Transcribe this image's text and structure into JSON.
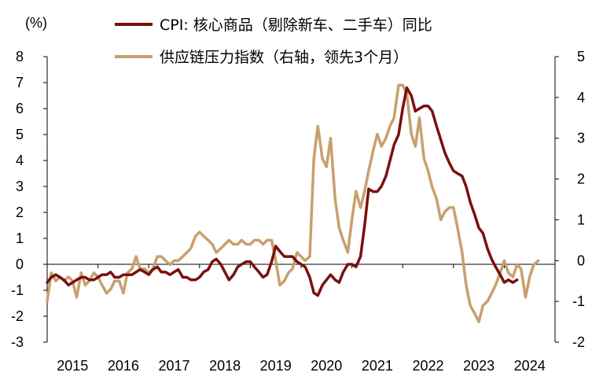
{
  "chart_data": {
    "type": "line",
    "unit_label": "(%)",
    "colors": {
      "cpi": "#7a1010",
      "supply": "#c8a06e",
      "neg_tick": "#e00000",
      "axis": "#000000"
    },
    "left_axis": {
      "min": -3,
      "max": 8,
      "ticks": [
        "8",
        "7",
        "6",
        "5",
        "4",
        "3",
        "2",
        "1",
        "0",
        "-1",
        "-2",
        "-3"
      ]
    },
    "right_axis": {
      "min": -2,
      "max": 5,
      "ticks": [
        "5",
        "4",
        "3",
        "2",
        "1",
        "0",
        "-1",
        "-2"
      ]
    },
    "x_axis": {
      "start": 2015.0,
      "end": 2025.0,
      "labels": [
        "2015",
        "2016",
        "2017",
        "2018",
        "2019",
        "2020",
        "2021",
        "2022",
        "2023",
        "2024"
      ]
    },
    "series": [
      {
        "name": "CPI: 核心商品（剔除新车、二手车）同比",
        "axis": "left",
        "color": "#7a1010",
        "points": [
          [
            2015.0,
            -0.7
          ],
          [
            2015.08,
            -0.5
          ],
          [
            2015.17,
            -0.4
          ],
          [
            2015.25,
            -0.5
          ],
          [
            2015.33,
            -0.6
          ],
          [
            2015.42,
            -0.8
          ],
          [
            2015.5,
            -0.7
          ],
          [
            2015.58,
            -0.6
          ],
          [
            2015.67,
            -0.5
          ],
          [
            2015.75,
            -0.5
          ],
          [
            2015.83,
            -0.6
          ],
          [
            2015.92,
            -0.6
          ],
          [
            2016.0,
            -0.5
          ],
          [
            2016.08,
            -0.4
          ],
          [
            2016.17,
            -0.4
          ],
          [
            2016.25,
            -0.3
          ],
          [
            2016.33,
            -0.5
          ],
          [
            2016.42,
            -0.5
          ],
          [
            2016.5,
            -0.4
          ],
          [
            2016.58,
            -0.4
          ],
          [
            2016.67,
            -0.4
          ],
          [
            2016.75,
            -0.3
          ],
          [
            2016.83,
            -0.2
          ],
          [
            2016.92,
            -0.3
          ],
          [
            2017.0,
            -0.4
          ],
          [
            2017.08,
            -0.2
          ],
          [
            2017.17,
            -0.1
          ],
          [
            2017.25,
            -0.3
          ],
          [
            2017.33,
            -0.3
          ],
          [
            2017.42,
            -0.4
          ],
          [
            2017.5,
            -0.3
          ],
          [
            2017.58,
            -0.2
          ],
          [
            2017.67,
            -0.5
          ],
          [
            2017.75,
            -0.5
          ],
          [
            2017.83,
            -0.6
          ],
          [
            2017.92,
            -0.6
          ],
          [
            2018.0,
            -0.5
          ],
          [
            2018.08,
            -0.3
          ],
          [
            2018.17,
            -0.2
          ],
          [
            2018.25,
            0.1
          ],
          [
            2018.33,
            0.2
          ],
          [
            2018.42,
            0.0
          ],
          [
            2018.5,
            -0.3
          ],
          [
            2018.58,
            -0.6
          ],
          [
            2018.67,
            -0.4
          ],
          [
            2018.75,
            -0.1
          ],
          [
            2018.83,
            0.0
          ],
          [
            2018.92,
            0.1
          ],
          [
            2019.0,
            0.1
          ],
          [
            2019.08,
            -0.1
          ],
          [
            2019.17,
            -0.3
          ],
          [
            2019.25,
            -0.5
          ],
          [
            2019.33,
            -0.4
          ],
          [
            2019.42,
            0.1
          ],
          [
            2019.5,
            0.7
          ],
          [
            2019.58,
            0.5
          ],
          [
            2019.67,
            0.3
          ],
          [
            2019.75,
            0.3
          ],
          [
            2019.83,
            0.3
          ],
          [
            2019.92,
            0.1
          ],
          [
            2020.0,
            0.0
          ],
          [
            2020.08,
            -0.1
          ],
          [
            2020.17,
            -0.5
          ],
          [
            2020.25,
            -1.1
          ],
          [
            2020.33,
            -1.2
          ],
          [
            2020.42,
            -0.8
          ],
          [
            2020.5,
            -0.6
          ],
          [
            2020.58,
            -0.4
          ],
          [
            2020.67,
            -0.6
          ],
          [
            2020.75,
            -0.7
          ],
          [
            2020.83,
            -0.3
          ],
          [
            2020.92,
            0.0
          ],
          [
            2021.0,
            0.0
          ],
          [
            2021.08,
            -0.1
          ],
          [
            2021.17,
            0.3
          ],
          [
            2021.25,
            1.5
          ],
          [
            2021.33,
            2.9
          ],
          [
            2021.42,
            2.8
          ],
          [
            2021.5,
            2.8
          ],
          [
            2021.58,
            3.0
          ],
          [
            2021.67,
            3.4
          ],
          [
            2021.75,
            4.0
          ],
          [
            2021.83,
            4.6
          ],
          [
            2021.92,
            5.0
          ],
          [
            2022.0,
            6.0
          ],
          [
            2022.08,
            6.8
          ],
          [
            2022.17,
            6.5
          ],
          [
            2022.25,
            5.9
          ],
          [
            2022.33,
            6.0
          ],
          [
            2022.42,
            6.1
          ],
          [
            2022.5,
            6.1
          ],
          [
            2022.58,
            5.9
          ],
          [
            2022.67,
            5.3
          ],
          [
            2022.75,
            4.8
          ],
          [
            2022.83,
            4.3
          ],
          [
            2022.92,
            3.9
          ],
          [
            2023.0,
            3.6
          ],
          [
            2023.08,
            3.5
          ],
          [
            2023.17,
            3.4
          ],
          [
            2023.25,
            3.0
          ],
          [
            2023.33,
            2.4
          ],
          [
            2023.42,
            1.9
          ],
          [
            2023.5,
            1.4
          ],
          [
            2023.58,
            1.2
          ],
          [
            2023.67,
            0.6
          ],
          [
            2023.75,
            0.2
          ],
          [
            2023.83,
            -0.1
          ],
          [
            2023.92,
            -0.4
          ],
          [
            2024.0,
            -0.7
          ],
          [
            2024.08,
            -0.6
          ],
          [
            2024.17,
            -0.7
          ],
          [
            2024.25,
            -0.6
          ]
        ]
      },
      {
        "name": "供应链压力指数（右轴，领先3个月）",
        "axis": "right",
        "color": "#c8a06e",
        "points": [
          [
            2015.0,
            -1.0
          ],
          [
            2015.08,
            -0.3
          ],
          [
            2015.17,
            -0.5
          ],
          [
            2015.25,
            -0.4
          ],
          [
            2015.33,
            -0.5
          ],
          [
            2015.42,
            -0.4
          ],
          [
            2015.5,
            -0.5
          ],
          [
            2015.58,
            -0.9
          ],
          [
            2015.67,
            -0.3
          ],
          [
            2015.75,
            -0.6
          ],
          [
            2015.83,
            -0.5
          ],
          [
            2015.92,
            -0.3
          ],
          [
            2016.0,
            -0.4
          ],
          [
            2016.08,
            -0.6
          ],
          [
            2016.17,
            -0.8
          ],
          [
            2016.25,
            -0.7
          ],
          [
            2016.33,
            -0.5
          ],
          [
            2016.42,
            -0.5
          ],
          [
            2016.5,
            -0.8
          ],
          [
            2016.58,
            -0.3
          ],
          [
            2016.67,
            -0.2
          ],
          [
            2016.75,
            0.1
          ],
          [
            2016.83,
            -0.2
          ],
          [
            2016.92,
            -0.2
          ],
          [
            2017.0,
            -0.3
          ],
          [
            2017.08,
            -0.2
          ],
          [
            2017.17,
            0.1
          ],
          [
            2017.25,
            0.1
          ],
          [
            2017.33,
            0.0
          ],
          [
            2017.42,
            -0.1
          ],
          [
            2017.5,
            0.0
          ],
          [
            2017.58,
            0.0
          ],
          [
            2017.67,
            0.1
          ],
          [
            2017.75,
            0.2
          ],
          [
            2017.83,
            0.3
          ],
          [
            2017.92,
            0.6
          ],
          [
            2018.0,
            0.7
          ],
          [
            2018.08,
            0.6
          ],
          [
            2018.17,
            0.5
          ],
          [
            2018.25,
            0.4
          ],
          [
            2018.33,
            0.2
          ],
          [
            2018.42,
            0.3
          ],
          [
            2018.5,
            0.4
          ],
          [
            2018.58,
            0.5
          ],
          [
            2018.67,
            0.4
          ],
          [
            2018.75,
            0.4
          ],
          [
            2018.83,
            0.5
          ],
          [
            2018.92,
            0.4
          ],
          [
            2019.0,
            0.4
          ],
          [
            2019.08,
            0.5
          ],
          [
            2019.17,
            0.5
          ],
          [
            2019.25,
            0.4
          ],
          [
            2019.33,
            0.5
          ],
          [
            2019.42,
            0.5
          ],
          [
            2019.5,
            0.0
          ],
          [
            2019.58,
            -0.6
          ],
          [
            2019.67,
            -0.5
          ],
          [
            2019.75,
            -0.3
          ],
          [
            2019.83,
            -0.2
          ],
          [
            2019.92,
            0.2
          ],
          [
            2020.0,
            0.1
          ],
          [
            2020.08,
            0.0
          ],
          [
            2020.17,
            0.1
          ],
          [
            2020.25,
            2.5
          ],
          [
            2020.33,
            3.3
          ],
          [
            2020.42,
            2.5
          ],
          [
            2020.5,
            2.3
          ],
          [
            2020.58,
            3.0
          ],
          [
            2020.67,
            1.5
          ],
          [
            2020.75,
            0.8
          ],
          [
            2020.83,
            0.5
          ],
          [
            2020.92,
            0.2
          ],
          [
            2021.0,
            1.0
          ],
          [
            2021.08,
            1.7
          ],
          [
            2021.17,
            1.3
          ],
          [
            2021.25,
            1.7
          ],
          [
            2021.33,
            2.2
          ],
          [
            2021.42,
            2.7
          ],
          [
            2021.5,
            3.1
          ],
          [
            2021.58,
            2.8
          ],
          [
            2021.67,
            3.0
          ],
          [
            2021.75,
            3.3
          ],
          [
            2021.83,
            3.5
          ],
          [
            2021.92,
            4.3
          ],
          [
            2022.0,
            4.3
          ],
          [
            2022.08,
            4.1
          ],
          [
            2022.17,
            3.1
          ],
          [
            2022.25,
            2.8
          ],
          [
            2022.33,
            3.5
          ],
          [
            2022.42,
            2.5
          ],
          [
            2022.5,
            2.2
          ],
          [
            2022.58,
            1.8
          ],
          [
            2022.67,
            1.5
          ],
          [
            2022.75,
            1.0
          ],
          [
            2022.83,
            1.2
          ],
          [
            2022.92,
            1.3
          ],
          [
            2023.0,
            1.3
          ],
          [
            2023.08,
            0.8
          ],
          [
            2023.17,
            0.2
          ],
          [
            2023.25,
            -0.6
          ],
          [
            2023.33,
            -1.1
          ],
          [
            2023.42,
            -1.3
          ],
          [
            2023.5,
            -1.5
          ],
          [
            2023.58,
            -1.1
          ],
          [
            2023.67,
            -1.0
          ],
          [
            2023.75,
            -0.8
          ],
          [
            2023.83,
            -0.6
          ],
          [
            2023.92,
            -0.3
          ],
          [
            2024.0,
            0.0
          ],
          [
            2024.08,
            -0.3
          ],
          [
            2024.17,
            -0.4
          ],
          [
            2024.25,
            -0.1
          ],
          [
            2024.33,
            -0.2
          ],
          [
            2024.42,
            -0.9
          ],
          [
            2024.5,
            -0.4
          ],
          [
            2024.58,
            -0.1
          ],
          [
            2024.67,
            0.0
          ]
        ]
      }
    ]
  }
}
